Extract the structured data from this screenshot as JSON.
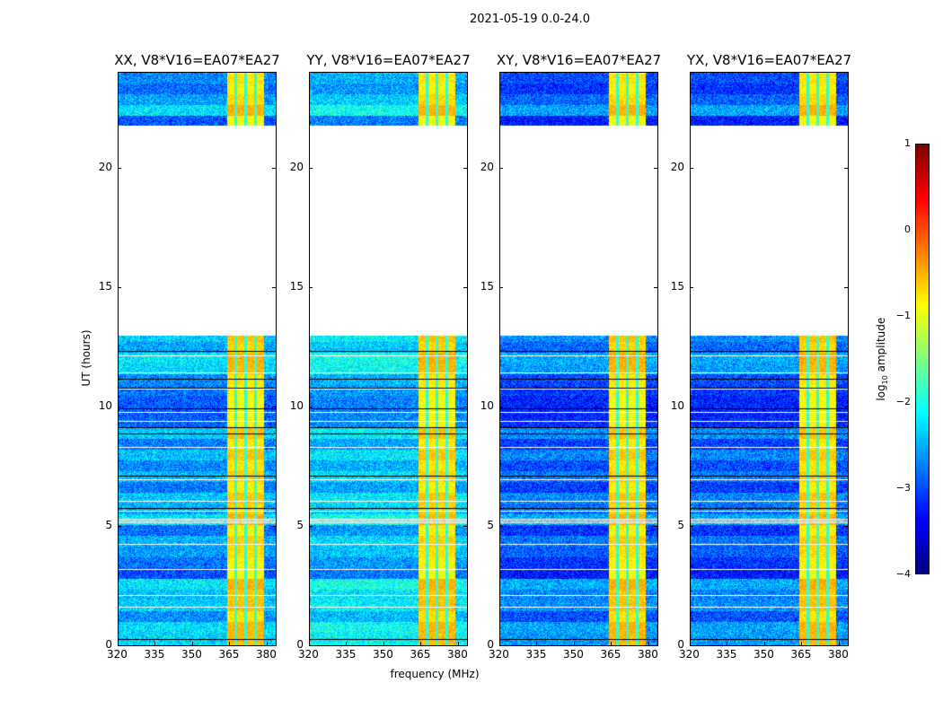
{
  "chart_data": {
    "type": "heatmap",
    "title": "2021-05-19 0.0-24.0",
    "xlabel": "frequency (MHz)",
    "ylabel": "UT (hours)",
    "xlim": [
      320,
      384
    ],
    "ylim": [
      0,
      24
    ],
    "xticks": [
      320,
      335,
      350,
      365,
      380
    ],
    "yticks": [
      0,
      5,
      10,
      15,
      20
    ],
    "panels": [
      {
        "title": "XX, V8*V16=EA07*EA27",
        "base_level": -2.6
      },
      {
        "title": "YY, V8*V16=EA07*EA27",
        "base_level": -2.4
      },
      {
        "title": "XY, V8*V16=EA07*EA27",
        "base_level": -2.9
      },
      {
        "title": "YX, V8*V16=EA07*EA27",
        "base_level": -2.9
      }
    ],
    "data_coverage_hours": [
      [
        0,
        13
      ],
      [
        21.8,
        24
      ]
    ],
    "bright_band_mhz": [
      364,
      379
    ],
    "band_level": -0.7,
    "colorbar": {
      "label": "log₁₀ amplitude",
      "label_main": "log",
      "label_sub": "10",
      "label_rest": " amplitude",
      "range": [
        -4,
        1
      ],
      "ticks": [
        1,
        0,
        -1,
        -2,
        -3,
        -4
      ],
      "tick_labels": [
        "1",
        "0",
        "−1",
        "−2",
        "−3",
        "−4"
      ],
      "colormap": "jet"
    }
  }
}
